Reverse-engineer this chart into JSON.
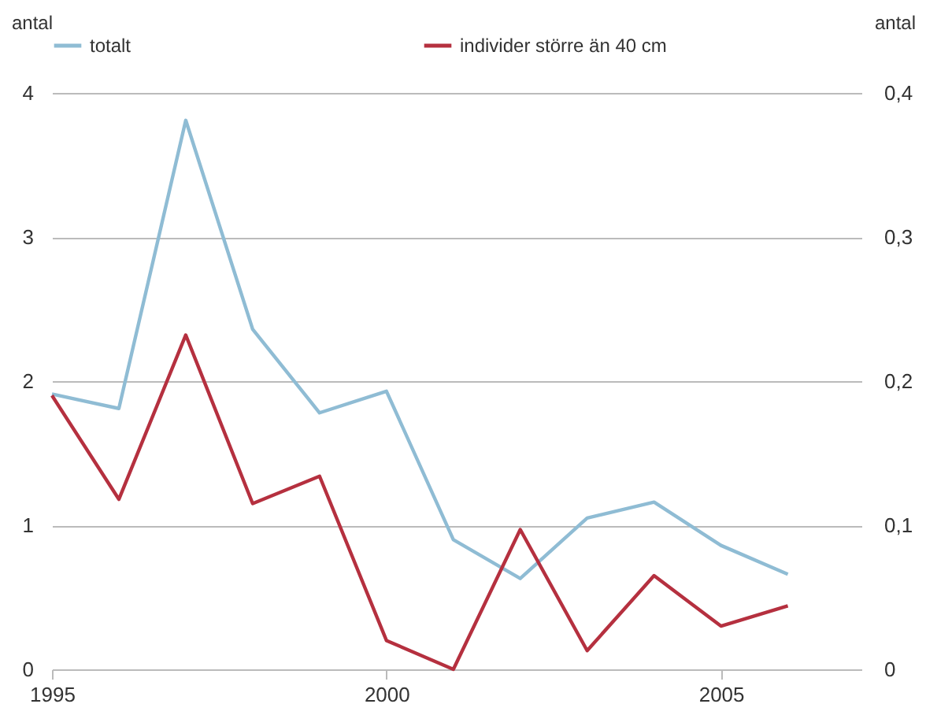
{
  "chart_data": {
    "type": "line",
    "ylabel": "antal",
    "y2label": "antal",
    "x": [
      1995,
      1996,
      1997,
      1998,
      1999,
      2000,
      2001,
      2002,
      2003,
      2004,
      2005,
      2006
    ],
    "xlim": [
      1995,
      2007.1
    ],
    "xticks": [
      1995,
      2000,
      2005
    ],
    "ylim": [
      0,
      4
    ],
    "yticks": [
      0,
      1,
      2,
      3,
      4
    ],
    "y2lim": [
      0,
      0.4
    ],
    "y2ticks": [
      0,
      {
        "value": 0.1,
        "label": "0,1"
      },
      {
        "value": 0.2,
        "label": "0,2"
      },
      {
        "value": 0.3,
        "label": "0,3"
      },
      {
        "value": 0.4,
        "label": "0,4"
      }
    ],
    "series": [
      {
        "name": "totalt",
        "color": "#8fbcd4",
        "values": [
          1.91,
          1.81,
          3.81,
          2.36,
          1.78,
          1.93,
          0.9,
          0.63,
          1.05,
          1.16,
          0.86,
          0.66
        ]
      },
      {
        "name": "individer större än 40 cm",
        "color": "#b5303f",
        "axis": "y2",
        "values": [
          0.19,
          0.118,
          0.232,
          0.115,
          0.134,
          0.02,
          0,
          0.097,
          0.013,
          0.065,
          0.03,
          0.044
        ]
      }
    ],
    "grid": "y",
    "legend": "top",
    "marker": "none",
    "line_style": "solid"
  }
}
